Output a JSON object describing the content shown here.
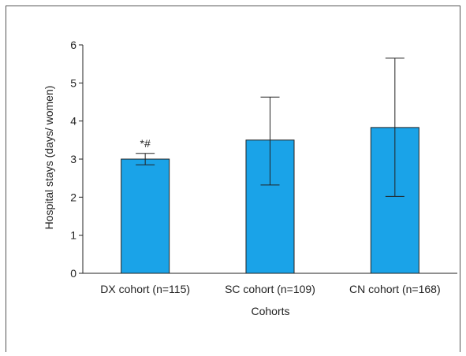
{
  "chart_data": {
    "type": "bar",
    "categories": [
      "DX cohort (n=115)",
      "SC cohort (n=109)",
      "CN cohort (n=168)"
    ],
    "values": [
      3.0,
      3.5,
      3.83
    ],
    "error_bars": [
      {
        "low": 2.85,
        "high": 3.15
      },
      {
        "low": 2.32,
        "high": 4.63
      },
      {
        "low": 2.02,
        "high": 5.65
      }
    ],
    "annotations": [
      "*#",
      "",
      ""
    ],
    "xlabel": "Cohorts",
    "ylabel": "Hospital stays (days/ women)",
    "ylim": [
      0,
      6
    ],
    "yticks": [
      "0",
      "1",
      "2",
      "3",
      "4",
      "5",
      "6"
    ],
    "bar_color": "#1aa3e8",
    "grid": false
  }
}
